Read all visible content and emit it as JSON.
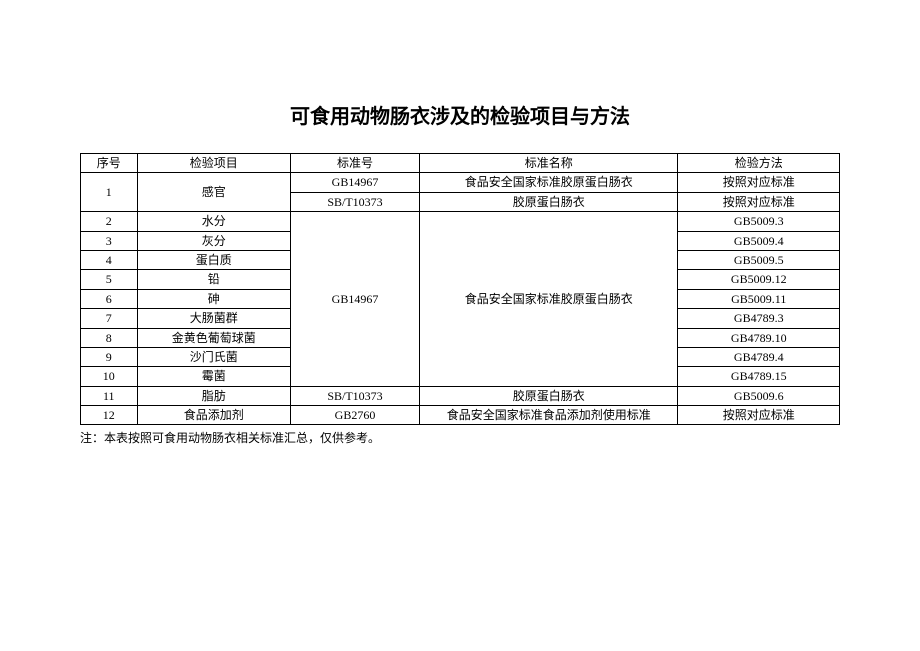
{
  "title": "可食用动物肠衣涉及的检验项目与方法",
  "headers": {
    "seq": "序号",
    "item": "检验项目",
    "standard_no": "标准号",
    "standard_name": "标准名称",
    "method": "检验方法"
  },
  "rows": {
    "r1": {
      "seq": "1",
      "item": "感官",
      "std": "GB14967",
      "name": "食品安全国家标准胶原蛋白肠衣",
      "method": "按照对应标准"
    },
    "r1b": {
      "std": "SB/T10373",
      "name": "胶原蛋白肠衣",
      "method": "按照对应标准"
    },
    "r2": {
      "seq": "2",
      "item": "水分",
      "method": "GB5009.3"
    },
    "r3": {
      "seq": "3",
      "item": "灰分",
      "method": "GB5009.4"
    },
    "r4": {
      "seq": "4",
      "item": "蛋白质",
      "method": "GB5009.5"
    },
    "r5": {
      "seq": "5",
      "item": "铅",
      "method": "GB5009.12"
    },
    "r6": {
      "seq": "6",
      "item": "砷",
      "method": "GB5009.11"
    },
    "r7": {
      "seq": "7",
      "item": "大肠菌群",
      "method": "GB4789.3"
    },
    "r8": {
      "seq": "8",
      "item": "金黄色葡萄球菌",
      "method": "GB4789.10"
    },
    "r9": {
      "seq": "9",
      "item": "沙门氏菌",
      "method": "GB4789.4"
    },
    "r10": {
      "seq": "10",
      "item": "霉菌",
      "method": "GB4789.15"
    },
    "merged_std": "GB14967",
    "merged_name": "食品安全国家标准胶原蛋白肠衣",
    "r11": {
      "seq": "11",
      "item": "脂肪",
      "std": "SB/T10373",
      "name": "胶原蛋白肠衣",
      "method": "GB5009.6"
    },
    "r12": {
      "seq": "12",
      "item": "食品添加剂",
      "std": "GB2760",
      "name": "食品安全国家标准食品添加剂使用标准",
      "method": "按照对应标准"
    }
  },
  "footnote": "注：本表按照可食用动物肠衣相关标准汇总，仅供参考。"
}
